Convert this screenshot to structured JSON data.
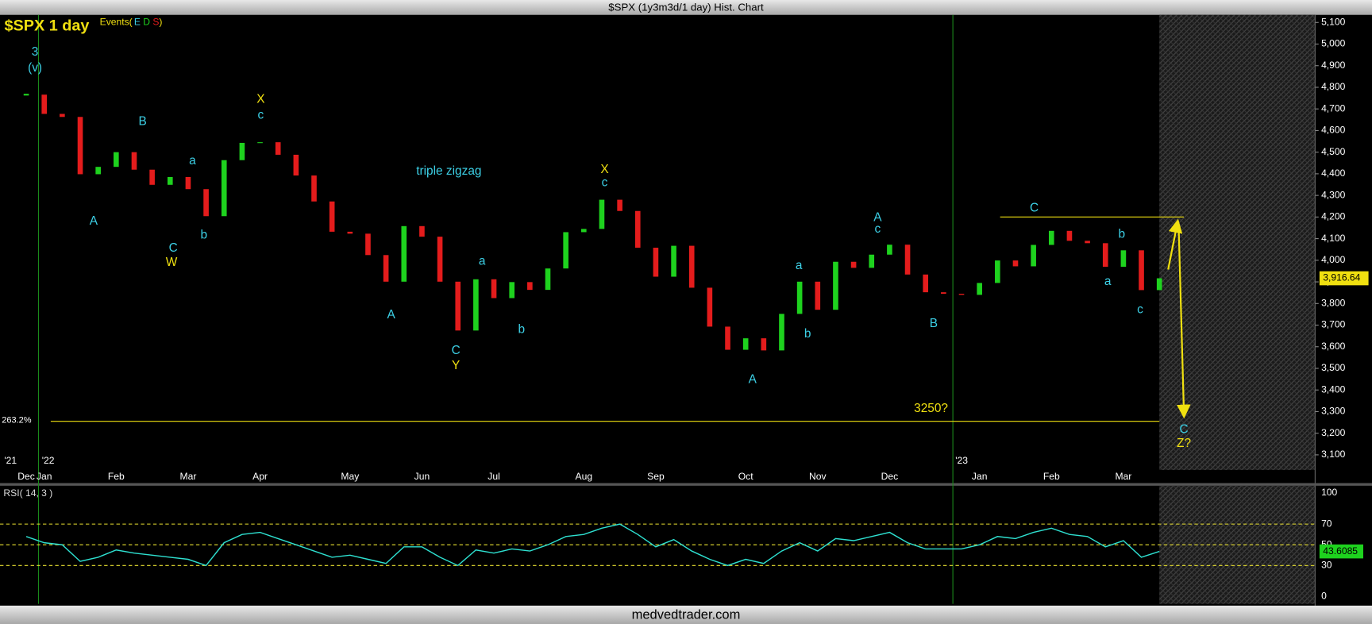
{
  "chart_data": [
    {
      "type": "candlestick",
      "title": "$SPX (1y3m3d/1 day) Hist. Chart",
      "subtitle": "$SPX 1 day",
      "events": [
        "Events(",
        "E",
        "D",
        "S",
        ")"
      ],
      "categories": [
        "Dec",
        "Jan",
        null,
        null,
        null,
        "Feb",
        null,
        null,
        null,
        "Mar",
        null,
        null,
        null,
        "Apr",
        null,
        null,
        null,
        null,
        "May",
        null,
        null,
        null,
        "Jun",
        null,
        null,
        null,
        "Jul",
        null,
        null,
        null,
        null,
        "Aug",
        null,
        null,
        null,
        "Sep",
        null,
        null,
        null,
        null,
        "Oct",
        null,
        null,
        null,
        "Nov",
        null,
        null,
        null,
        "Dec",
        null,
        null,
        null,
        null,
        "Jan",
        null,
        null,
        null,
        "Feb",
        null,
        null,
        null,
        "Mar",
        null,
        null
      ],
      "years": [
        "'21",
        "'22",
        "'23"
      ],
      "values": [
        4766,
        4677,
        4663,
        4398,
        4432,
        4500,
        4419,
        4349,
        4385,
        4329,
        4204,
        4463,
        4543,
        4546,
        4488,
        4392,
        4272,
        4132,
        4123,
        4024,
        3901,
        4158,
        4109,
        3901,
        3675,
        3912,
        3825,
        3899,
        3863,
        3962,
        4130,
        4145,
        4280,
        4228,
        4058,
        3924,
        4067,
        3873,
        3693,
        3586,
        3639,
        3583,
        3752,
        3901,
        3771,
        3993,
        3965,
        4026,
        4072,
        3934,
        3852,
        3845,
        3840,
        3895,
        3999,
        3972,
        4071,
        4136,
        4090,
        4079,
        3970,
        4046,
        3862,
        3916.64
      ],
      "last_value_label": "3,916.64",
      "up_color": "#1ed21e",
      "down_color": "#e41c1c",
      "ylim": [
        3030,
        5135
      ],
      "yticks": [
        {
          "value": 3100,
          "label": "3,100"
        },
        {
          "value": 3200,
          "label": "3,200"
        },
        {
          "value": 3300,
          "label": "3,300"
        },
        {
          "value": 3400,
          "label": "3,400"
        },
        {
          "value": 3500,
          "label": "3,500"
        },
        {
          "value": 3600,
          "label": "3,600"
        },
        {
          "value": 3700,
          "label": "3,700"
        },
        {
          "value": 3800,
          "label": "3,800"
        },
        {
          "value": 3900,
          "label": "3,900"
        },
        {
          "value": 4000,
          "label": "4,000"
        },
        {
          "value": 4100,
          "label": "4,100"
        },
        {
          "value": 4200,
          "label": "4,200"
        },
        {
          "value": 4300,
          "label": "4,300"
        },
        {
          "value": 4400,
          "label": "4,400"
        },
        {
          "value": 4500,
          "label": "4,500"
        },
        {
          "value": 4600,
          "label": "4,600"
        },
        {
          "value": 4700,
          "label": "4,700"
        },
        {
          "value": 4800,
          "label": "4,800"
        },
        {
          "value": 4900,
          "label": "4,900"
        },
        {
          "value": 5000,
          "label": "5,000"
        },
        {
          "value": 5100,
          "label": "5,100"
        }
      ],
      "fib_level": {
        "value": 3255,
        "label": "263.2%"
      },
      "resistance": 4200,
      "projection": {
        "peak": 4160,
        "target": 3300
      },
      "annotations": [
        {
          "text": "3",
          "color": "#3cd0e6"
        },
        {
          "text": "(v)",
          "color": "#3cd0e6"
        },
        {
          "text": "A",
          "color": "#3cd0e6"
        },
        {
          "text": "B",
          "color": "#3cd0e6"
        },
        {
          "text": "a",
          "color": "#3cd0e6"
        },
        {
          "text": "C",
          "color": "#3cd0e6"
        },
        {
          "text": "W",
          "color": "#f0e010"
        },
        {
          "text": "b",
          "color": "#3cd0e6"
        },
        {
          "text": "X",
          "color": "#f0e010"
        },
        {
          "text": "c",
          "color": "#3cd0e6"
        },
        {
          "text": "triple zigzag",
          "color": "#3cd0e6"
        },
        {
          "text": "A",
          "color": "#3cd0e6"
        },
        {
          "text": "a",
          "color": "#3cd0e6"
        },
        {
          "text": "C",
          "color": "#3cd0e6"
        },
        {
          "text": "Y",
          "color": "#f0e010"
        },
        {
          "text": "b",
          "color": "#3cd0e6"
        },
        {
          "text": "X",
          "color": "#f0e010"
        },
        {
          "text": "c",
          "color": "#3cd0e6"
        },
        {
          "text": "A",
          "color": "#3cd0e6"
        },
        {
          "text": "a",
          "color": "#3cd0e6"
        },
        {
          "text": "b",
          "color": "#3cd0e6"
        },
        {
          "text": "A",
          "color": "#3cd0e6"
        },
        {
          "text": "c",
          "color": "#3cd0e6"
        },
        {
          "text": "B",
          "color": "#3cd0e6"
        },
        {
          "text": "C",
          "color": "#3cd0e6"
        },
        {
          "text": "b",
          "color": "#3cd0e6"
        },
        {
          "text": "a",
          "color": "#3cd0e6"
        },
        {
          "text": "c",
          "color": "#3cd0e6"
        },
        {
          "text": "3250?",
          "color": "#f0e010"
        },
        {
          "text": "C",
          "color": "#3cd0e6"
        },
        {
          "text": "Z?",
          "color": "#f0e010"
        }
      ]
    },
    {
      "type": "line",
      "title": "RSI( 14, 3 )",
      "values": [
        58,
        52,
        50,
        34,
        38,
        45,
        42,
        40,
        38,
        36,
        30,
        52,
        60,
        62,
        56,
        50,
        44,
        38,
        40,
        36,
        32,
        48,
        48,
        38,
        30,
        45,
        42,
        46,
        44,
        50,
        58,
        60,
        66,
        70,
        60,
        48,
        55,
        44,
        36,
        30,
        36,
        32,
        44,
        52,
        44,
        56,
        54,
        58,
        62,
        52,
        46,
        46,
        46,
        50,
        58,
        56,
        62,
        66,
        60,
        58,
        48,
        54,
        38,
        43.6085
      ],
      "color": "#2ee0d0",
      "ylim": [
        -7,
        107
      ],
      "yticks": [
        0,
        30,
        50,
        70,
        100
      ],
      "guide_lines": [
        30,
        50,
        70
      ],
      "guide_color": "#e8e030"
    }
  ],
  "footer": "medvedtrader.com"
}
